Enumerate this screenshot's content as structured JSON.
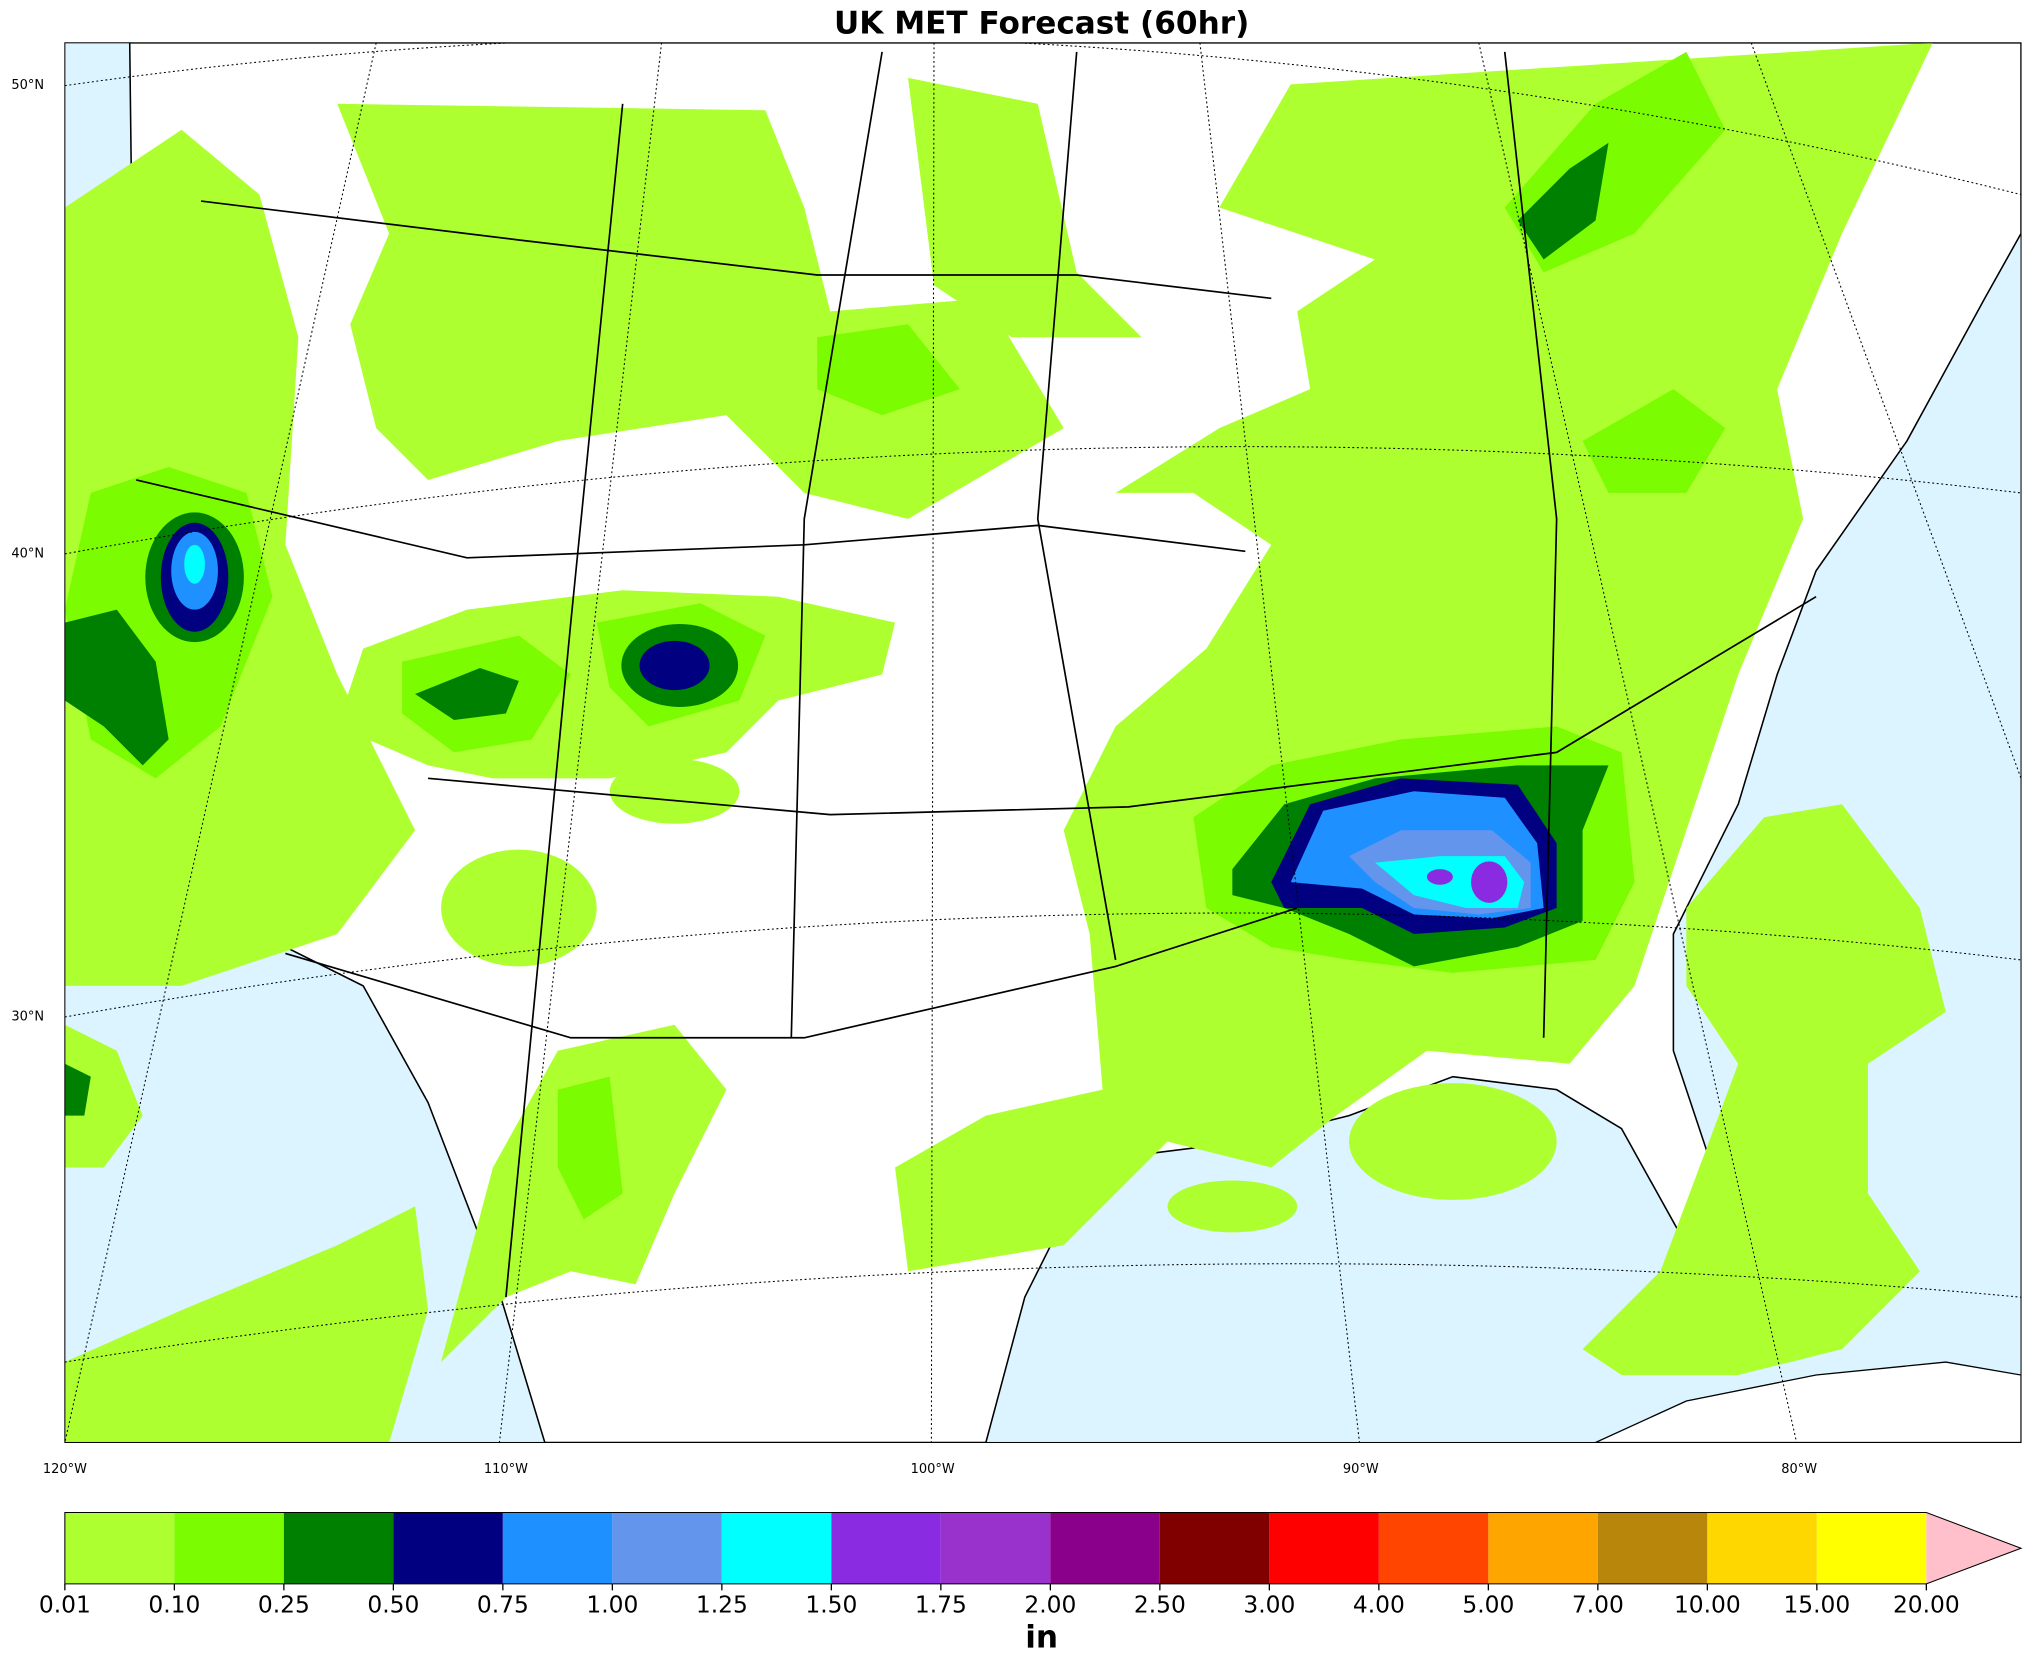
{
  "title": "UK MET Forecast (60hr)",
  "lat_labels": [
    "50°N",
    "40°N",
    "30°N"
  ],
  "lon_labels": [
    "120°W",
    "110°W",
    "100°W",
    "90°W",
    "80°W"
  ],
  "colorbar": {
    "ticks": [
      0.01,
      {
        "value": 0.1,
        "label": "0.10"
      },
      0.25,
      {
        "value": 0.5,
        "label": "0.50"
      },
      0.75,
      {
        "value": 1,
        "label": "1.00"
      },
      1.25,
      {
        "value": 1.5,
        "label": "1.50"
      },
      1.75,
      {
        "value": 2,
        "label": "2.00"
      },
      {
        "value": 2.5,
        "label": "2.50"
      },
      {
        "value": 3,
        "label": "3.00"
      },
      {
        "value": 4,
        "label": "4.00"
      },
      {
        "value": 5,
        "label": "5.00"
      },
      {
        "value": 7,
        "label": "7.00"
      },
      {
        "value": 10,
        "label": "10.00"
      },
      {
        "value": 15,
        "label": "15.00"
      },
      {
        "value": 20,
        "label": "20.00"
      }
    ],
    "colors": [
      "#adff2f",
      "#7cfc00",
      "#008000",
      "#000080",
      "#1e90ff",
      "#6495ed",
      "#00ffff",
      "#8a2be2",
      "#9932cc",
      "#8b008b",
      "#800000",
      "#ff0000",
      "#ff4500",
      "#ffa500",
      "#b8860b",
      "#ffd700",
      "#ffff00"
    ],
    "extend_color": "#ffc0cb",
    "unit": "in"
  }
}
